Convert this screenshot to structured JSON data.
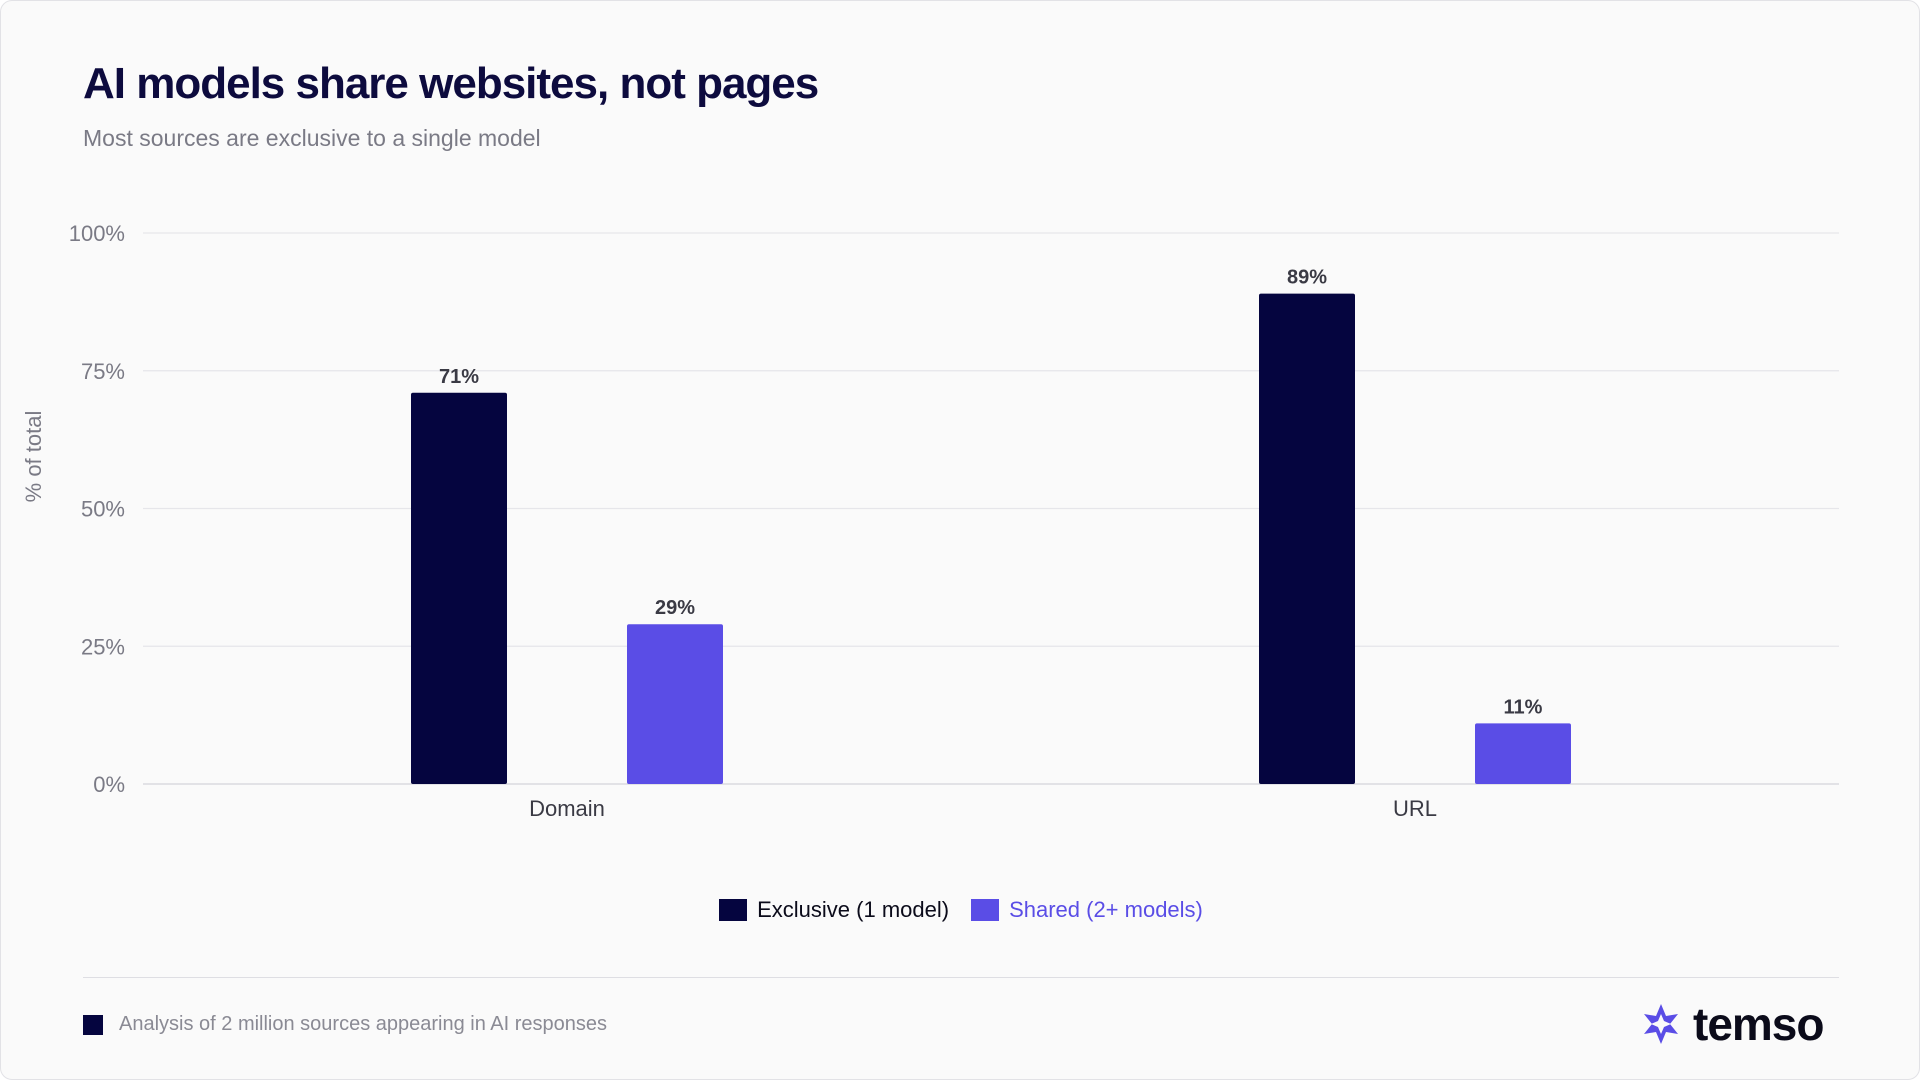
{
  "header": {
    "title": "AI models share websites, not pages",
    "subtitle": "Most sources are exclusive to a single model"
  },
  "chart_data": {
    "type": "bar",
    "categories": [
      "Domain",
      "URL"
    ],
    "series": [
      {
        "name": "Exclusive (1 model)",
        "values": [
          71,
          89
        ],
        "color": "#05053f"
      },
      {
        "name": "Shared (2+ models)",
        "values": [
          29,
          11
        ],
        "color": "#5a4de6"
      }
    ],
    "data_labels": [
      [
        "71%",
        "89%"
      ],
      [
        "29%",
        "11%"
      ]
    ],
    "ylabel": "% of total",
    "ylim": [
      0,
      100
    ],
    "yticks": [
      0,
      25,
      50,
      75,
      100
    ],
    "ytick_labels": [
      "0%",
      "25%",
      "50%",
      "75%",
      "100%"
    ],
    "grid": true,
    "legend_position": "bottom-center"
  },
  "footer": {
    "note": "Analysis of 2 million sources appearing in AI responses",
    "logo_text": "temso",
    "logo_icon": "temso-star-icon"
  },
  "colors": {
    "title": "#0d0b3e",
    "exclusive": "#05053f",
    "shared": "#5a4de6",
    "logo_icon": "#5a4de6"
  }
}
